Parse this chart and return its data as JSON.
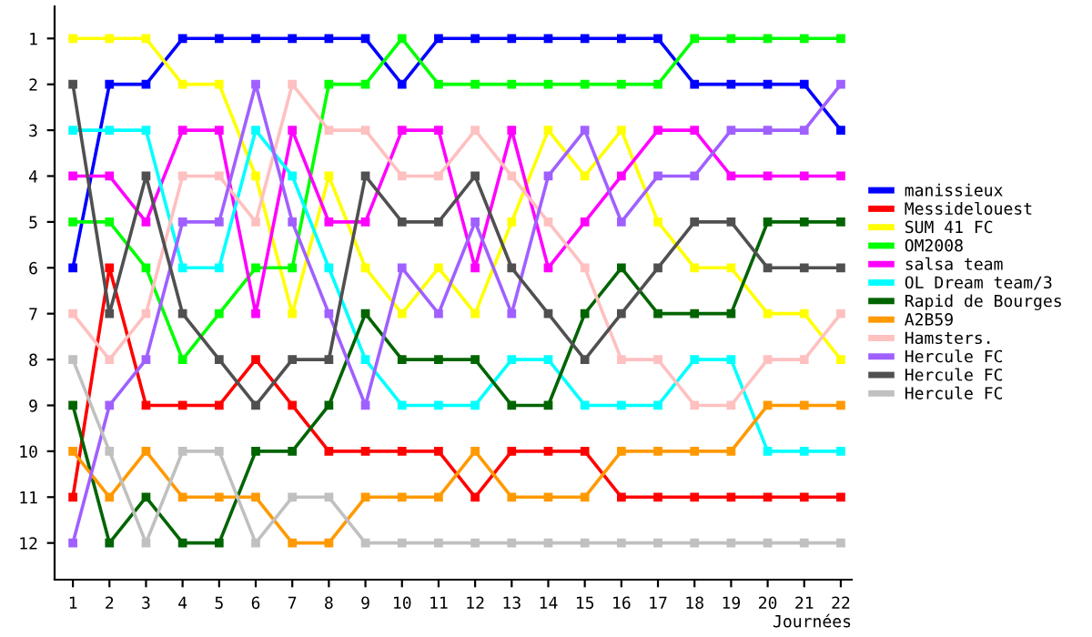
{
  "chart_data": {
    "type": "line",
    "xlabel": "Journées",
    "x": [
      1,
      2,
      3,
      4,
      5,
      6,
      7,
      8,
      9,
      10,
      11,
      12,
      13,
      14,
      15,
      16,
      17,
      18,
      19,
      20,
      21,
      22
    ],
    "xlim": [
      0.5,
      22.3
    ],
    "xticks": [
      1,
      2,
      3,
      4,
      5,
      6,
      7,
      8,
      9,
      10,
      11,
      12,
      13,
      14,
      15,
      16,
      17,
      18,
      19,
      20,
      21,
      22
    ],
    "ylim": [
      12.8,
      0.3
    ],
    "yticks": [
      1,
      2,
      3,
      4,
      5,
      6,
      7,
      8,
      9,
      10,
      11,
      12
    ],
    "marker": "square",
    "line_style": "solid",
    "grid": false,
    "legend": "right",
    "series": [
      {
        "name": "manissieux",
        "color": "#0000ff",
        "values": [
          6,
          2,
          2,
          1,
          1,
          1,
          1,
          1,
          1,
          2,
          1,
          1,
          1,
          1,
          1,
          1,
          1,
          2,
          2,
          2,
          2,
          3
        ]
      },
      {
        "name": "Messidelouest",
        "color": "#ff0000",
        "values": [
          11,
          6,
          9,
          9,
          9,
          8,
          9,
          10,
          10,
          10,
          10,
          11,
          10,
          10,
          10,
          11,
          11,
          11,
          11,
          11,
          11,
          11
        ]
      },
      {
        "name": "SUM 41 FC",
        "color": "#ffff00",
        "values": [
          1,
          1,
          1,
          2,
          2,
          4,
          7,
          4,
          6,
          7,
          6,
          7,
          5,
          3,
          4,
          3,
          5,
          6,
          6,
          7,
          7,
          8
        ]
      },
      {
        "name": "OM2008",
        "color": "#00ff00",
        "values": [
          5,
          5,
          6,
          8,
          7,
          6,
          6,
          2,
          2,
          1,
          2,
          2,
          2,
          2,
          2,
          2,
          2,
          1,
          1,
          1,
          1,
          1
        ]
      },
      {
        "name": "salsa team",
        "color": "#ff00ff",
        "values": [
          4,
          4,
          5,
          3,
          3,
          7,
          3,
          5,
          5,
          3,
          3,
          6,
          3,
          6,
          5,
          4,
          3,
          3,
          4,
          4,
          4,
          4
        ]
      },
      {
        "name": "OL Dream team/3",
        "color": "#00ffff",
        "values": [
          3,
          3,
          3,
          6,
          6,
          3,
          4,
          6,
          8,
          9,
          9,
          9,
          8,
          8,
          9,
          9,
          9,
          8,
          8,
          10,
          10,
          10
        ]
      },
      {
        "name": "Rapid de Bourges",
        "color": "#006400",
        "values": [
          9,
          12,
          11,
          12,
          12,
          10,
          10,
          9,
          7,
          8,
          8,
          8,
          9,
          9,
          7,
          6,
          7,
          7,
          7,
          5,
          5,
          5
        ]
      },
      {
        "name": "A2B59",
        "color": "#ff9900",
        "values": [
          10,
          11,
          10,
          11,
          11,
          11,
          12,
          12,
          11,
          11,
          11,
          10,
          11,
          11,
          11,
          10,
          10,
          10,
          10,
          9,
          9,
          9
        ]
      },
      {
        "name": "Hamsters.",
        "color": "#ffc0c0",
        "values": [
          7,
          8,
          7,
          4,
          4,
          5,
          2,
          3,
          3,
          4,
          4,
          3,
          4,
          5,
          6,
          8,
          8,
          9,
          9,
          8,
          8,
          7
        ]
      },
      {
        "name": "Hercule FC",
        "color": "#a060ff",
        "values": [
          12,
          9,
          8,
          5,
          5,
          2,
          5,
          7,
          9,
          6,
          7,
          5,
          7,
          4,
          3,
          5,
          4,
          4,
          3,
          3,
          3,
          2
        ]
      },
      {
        "name": "Hercule FC",
        "color": "#505050",
        "values": [
          2,
          7,
          4,
          7,
          8,
          9,
          8,
          8,
          4,
          5,
          5,
          4,
          6,
          7,
          8,
          7,
          6,
          5,
          5,
          6,
          6,
          6
        ]
      },
      {
        "name": "Hercule FC",
        "color": "#c0c0c0",
        "values": [
          8,
          10,
          12,
          10,
          10,
          12,
          11,
          11,
          12,
          12,
          12,
          12,
          12,
          12,
          12,
          12,
          12,
          12,
          12,
          12,
          12,
          12
        ]
      }
    ]
  }
}
